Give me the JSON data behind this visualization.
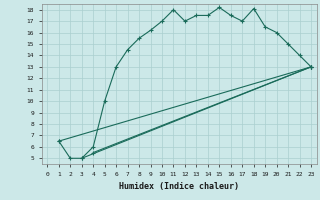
{
  "xlabel": "Humidex (Indice chaleur)",
  "bg_color": "#cce8e8",
  "grid_color": "#aacfcf",
  "line_color": "#1a6b5a",
  "xlim": [
    -0.5,
    23.5
  ],
  "ylim": [
    4.5,
    18.5
  ],
  "yticks": [
    5,
    6,
    7,
    8,
    9,
    10,
    11,
    12,
    13,
    14,
    15,
    16,
    17,
    18
  ],
  "xticks": [
    0,
    1,
    2,
    3,
    4,
    5,
    6,
    7,
    8,
    9,
    10,
    11,
    12,
    13,
    14,
    15,
    16,
    17,
    18,
    19,
    20,
    21,
    22,
    23
  ],
  "line1_x": [
    1,
    2,
    3,
    4,
    5,
    6,
    7,
    8,
    9,
    10,
    11,
    12,
    13,
    14,
    15,
    16,
    17,
    18,
    19,
    20,
    21,
    22,
    23
  ],
  "line1_y": [
    6.5,
    5.0,
    5.0,
    6.0,
    10.0,
    13.0,
    14.5,
    15.5,
    16.2,
    17.0,
    18.0,
    17.0,
    17.5,
    17.5,
    18.2,
    17.5,
    17.0,
    18.1,
    16.5,
    16.0,
    15.0,
    14.0,
    13.0
  ],
  "line2_x": [
    1,
    23
  ],
  "line2_y": [
    6.5,
    13.0
  ],
  "line3_x": [
    3,
    23
  ],
  "line3_y": [
    5.0,
    13.0
  ],
  "line4_x": [
    4,
    23
  ],
  "line4_y": [
    5.5,
    13.0
  ]
}
